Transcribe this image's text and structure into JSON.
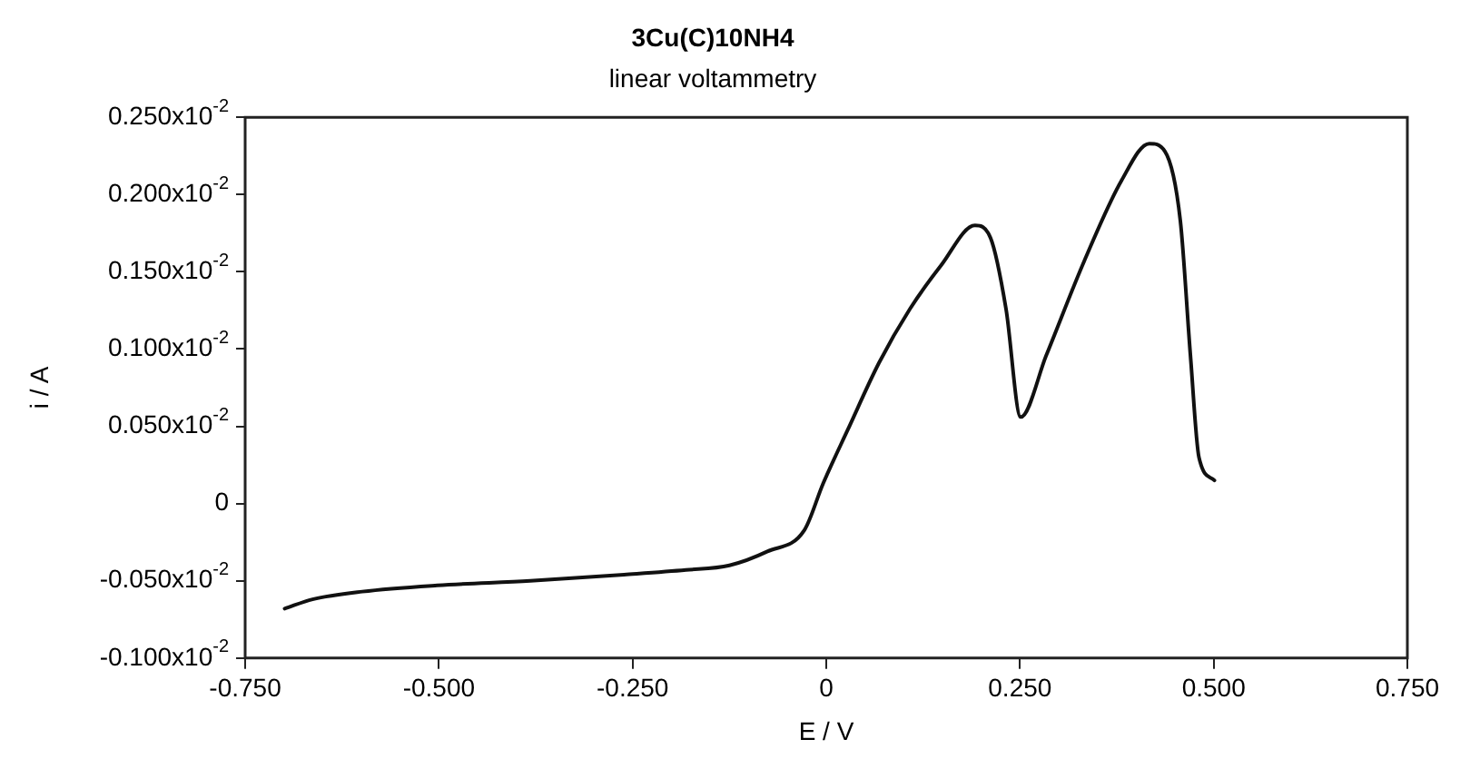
{
  "chart_data": {
    "type": "line",
    "title": "3Cu(C)10NH4",
    "subtitle": "linear voltammetry",
    "xlabel": "E / V",
    "ylabel": "i / A",
    "x": [
      -0.699,
      -0.663,
      -0.599,
      -0.502,
      -0.382,
      -0.261,
      -0.181,
      -0.125,
      -0.076,
      -0.028,
      -0.004,
      0.028,
      0.068,
      0.108,
      0.148,
      0.192,
      0.212,
      0.232,
      0.251,
      0.284,
      0.333,
      0.381,
      0.417,
      0.437,
      0.457,
      0.47,
      0.481,
      0.501
    ],
    "series": [
      {
        "color": "#111111",
        "values": [
          -0.00068,
          -0.00062,
          -0.00057,
          -0.00053,
          -0.0005,
          -0.00046,
          -0.00043,
          -0.0004,
          -0.00031,
          -0.00017,
          0.00013,
          0.00048,
          0.00091,
          0.00126,
          0.00154,
          0.0018,
          0.00172,
          0.00126,
          0.00056,
          0.00096,
          0.00157,
          0.00209,
          0.00233,
          0.00228,
          0.00183,
          0.00096,
          0.0003,
          0.00015
        ]
      }
    ],
    "xlim": [
      -0.75,
      0.75
    ],
    "xticks": [
      {
        "value": -0.75,
        "label": "-0.750"
      },
      {
        "value": -0.5,
        "label": "-0.500"
      },
      {
        "value": -0.25,
        "label": "-0.250"
      },
      0,
      {
        "value": 0.25,
        "label": "0.250"
      },
      {
        "value": 0.5,
        "label": "0.500"
      },
      {
        "value": 0.75,
        "label": "0.750"
      }
    ],
    "ylim": [
      -0.001,
      0.0025
    ],
    "yticks": [
      {
        "value": -0.001,
        "label": "-0.100x10$^{-2}$"
      },
      {
        "value": -0.0005,
        "label": "-0.050x10$^{-2}$"
      },
      0,
      {
        "value": 0.0005,
        "label": "0.050x10$^{-2}$"
      },
      {
        "value": 0.001,
        "label": "0.100x10$^{-2}$"
      },
      {
        "value": 0.0015,
        "label": "0.150x10$^{-2}$"
      },
      {
        "value": 0.002,
        "label": "0.200x10$^{-2}$"
      },
      {
        "value": 0.0025,
        "label": "0.250x10$^{-2}$"
      }
    ],
    "grid": false,
    "legend": false,
    "marker": "none",
    "line_style": "solid"
  }
}
